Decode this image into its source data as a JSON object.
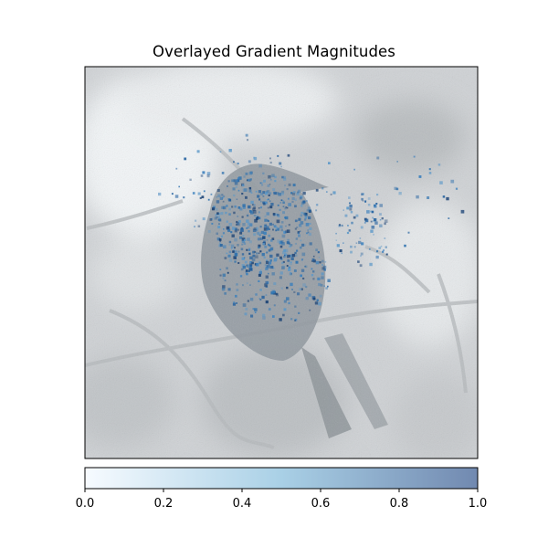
{
  "chart_data": {
    "type": "heatmap",
    "title": "Overlayed Gradient Magnitudes",
    "xlabel": "",
    "ylabel": "",
    "image_axes": {
      "xticks": [],
      "yticks": []
    },
    "overlay": {
      "description_of_display": "gradient magnitude saliency overlaid on a grayscale bird-on-branch photograph",
      "colormap": "Blues",
      "alpha": 0.5
    },
    "colorbar": {
      "orientation": "horizontal",
      "placement": "bottom",
      "vmin": 0.0,
      "vmax": 1.0,
      "tick_values": [
        0.0,
        0.2,
        0.4,
        0.6,
        0.8,
        1.0
      ],
      "tick_labels": [
        "0.0",
        "0.2",
        "0.4",
        "0.6",
        "0.8",
        "1.0"
      ],
      "color_low": "#f7fbff",
      "color_mid": "#a9d0e6",
      "color_high": "#7189b0"
    },
    "grid": false
  }
}
